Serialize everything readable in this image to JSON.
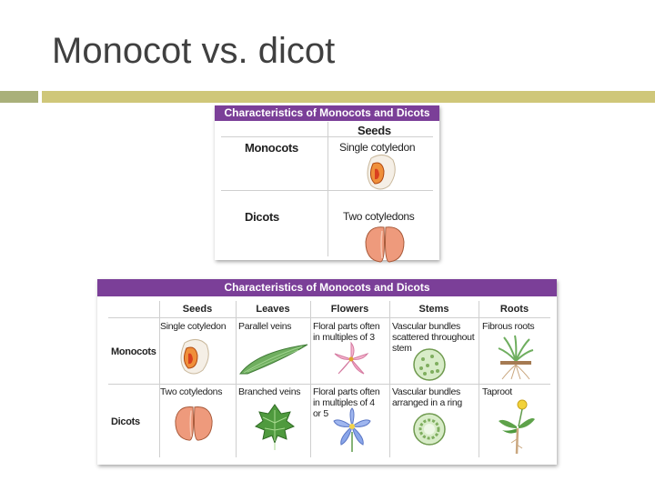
{
  "slide": {
    "title": "Monocot vs. dicot"
  },
  "small_table": {
    "header": "Characteristics of Monocots and Dicots",
    "column": "Seeds",
    "rows": [
      {
        "label": "Monocots",
        "seed": "Single cotyledon"
      },
      {
        "label": "Dicots",
        "seed": "Two cotyledons"
      }
    ]
  },
  "big_table": {
    "header": "Characteristics of Monocots and Dicots",
    "columns": [
      "Seeds",
      "Leaves",
      "Flowers",
      "Stems",
      "Roots"
    ],
    "rows": [
      {
        "label": "Monocots",
        "seeds": "Single cotyledon",
        "leaves": "Parallel veins",
        "flowers_1": "Floral parts often",
        "flowers_2": "in multiples of 3",
        "stems_1": "Vascular bundles",
        "stems_2": "scattered throughout",
        "stems_3": "stem",
        "roots": "Fibrous roots"
      },
      {
        "label": "Dicots",
        "seeds": "Two cotyledons",
        "leaves": "Branched veins",
        "flowers_1": "Floral parts often",
        "flowers_2": "in multiples of 4",
        "flowers_3": "or 5",
        "stems_1": "Vascular bundles",
        "stems_2": "arranged in a ring",
        "roots": "Taproot"
      }
    ]
  },
  "colors": {
    "header": "#7b3f98",
    "title": "#404040",
    "rule_left": "#a9b07a",
    "rule_right": "#cfc779"
  }
}
